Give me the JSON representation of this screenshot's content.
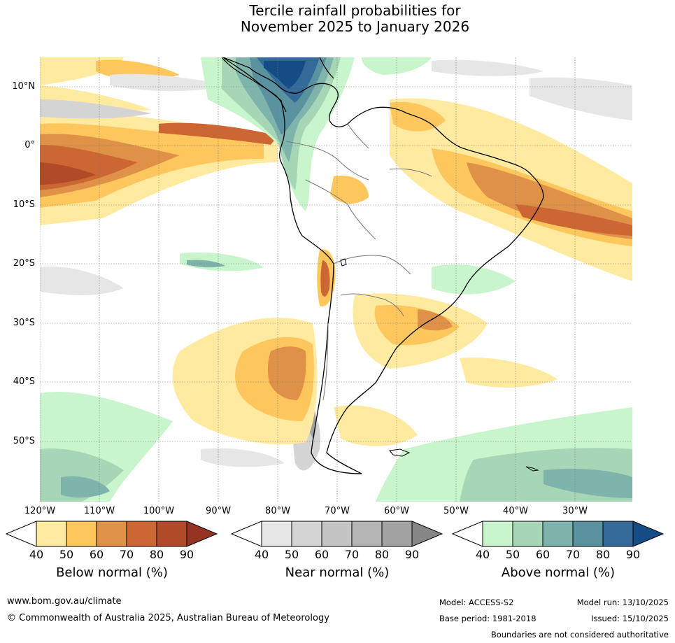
{
  "title": {
    "line1": "Tercile rainfall probabilities for",
    "line2": "November 2025 to January 2026"
  },
  "map": {
    "lat_labels": [
      "10°N",
      "0°",
      "10°S",
      "20°S",
      "30°S",
      "40°S",
      "50°S"
    ],
    "lon_labels": [
      "120°W",
      "110°W",
      "100°W",
      "90°W",
      "80°W",
      "70°W",
      "60°W",
      "50°W",
      "40°W",
      "30°W"
    ]
  },
  "legend": {
    "below": {
      "title": "Below normal (%)",
      "ticks": [
        "40",
        "50",
        "60",
        "70",
        "80",
        "90"
      ],
      "colors": [
        "#ffeaa0",
        "#fdc75e",
        "#e09148",
        "#cc6633",
        "#b04a28",
        "#963322"
      ]
    },
    "near": {
      "title": "Near normal (%)",
      "ticks": [
        "40",
        "50",
        "60",
        "70",
        "80",
        "90"
      ],
      "colors": [
        "#e6e6e6",
        "#d4d4d4",
        "#c4c4c4",
        "#b4b4b4",
        "#a2a2a2",
        "#868686"
      ]
    },
    "above": {
      "title": "Above normal (%)",
      "ticks": [
        "40",
        "50",
        "60",
        "70",
        "80",
        "90"
      ],
      "colors": [
        "#c8f5cc",
        "#a6d6b6",
        "#7eb4ac",
        "#5a92a0",
        "#336a9a",
        "#144d85"
      ]
    }
  },
  "footer": {
    "website": "www.bom.gov.au/climate",
    "copyright": "© Commonwealth of Australia 2025, Australian Bureau of Meteorology",
    "model": "Model: ACCESS-S2",
    "model_run": "Model run: 13/10/2025",
    "base_period": "Base period: 1981-2018",
    "issued": "Issued: 15/10/2025",
    "disclaimer": "Boundaries are not considered authoritative"
  }
}
